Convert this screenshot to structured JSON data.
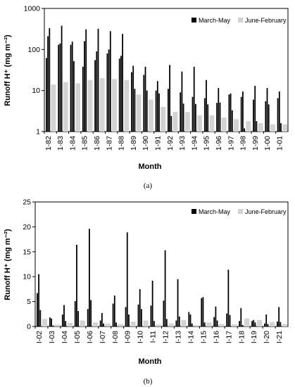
{
  "chart_data": [
    {
      "type": "bar",
      "panel_label": "(a)",
      "xlabel": "Month",
      "ylabel": "Runoff H⁺ (mg m⁻²)",
      "yscale": "log",
      "ylim": [
        1,
        1000
      ],
      "yticks": [
        "1",
        "10",
        "100",
        "1000"
      ],
      "categories": [
        "1-82",
        "1-83",
        "1-84",
        "1-85",
        "1-86",
        "1-87",
        "1-88",
        "1-89",
        "1-90",
        "1-91",
        "1-92",
        "1-93",
        "1-94",
        "1-95",
        "1-96",
        "1-97",
        "1-98",
        "1-99",
        "1-00",
        "1-01"
      ],
      "legend_position": "top-right",
      "series": [
        {
          "name": "March-May",
          "color": "#000000",
          "values": [
            [
              62,
              210,
              330
            ],
            [
              130,
              140,
              380
            ],
            [
              130,
              155,
              52
            ],
            [
              38,
              160,
              310
            ],
            [
              55,
              90,
              320
            ],
            [
              80,
              100,
              280
            ],
            [
              60,
              70,
              240
            ],
            [
              28,
              40,
              11
            ],
            [
              24,
              38,
              10
            ],
            [
              10,
              17,
              8.5
            ],
            [
              11,
              42,
              2.4
            ],
            [
              9,
              29,
              4.8
            ],
            [
              7,
              38,
              4.7
            ],
            [
              6.5,
              18,
              4.6
            ],
            [
              5,
              11.5,
              5.1
            ],
            [
              8,
              8.5,
              3.3
            ],
            [
              7,
              9.5,
              1.2
            ],
            [
              6,
              13,
              1.8
            ],
            [
              5.5,
              11.5,
              4.6
            ],
            [
              6.5,
              9.5,
              1.6
            ]
          ]
        },
        {
          "name": "June-February",
          "color": "#d3d3d3",
          "values": [
            14,
            16,
            15,
            18,
            20,
            19,
            18,
            8,
            6,
            4,
            3,
            3,
            2.5,
            2.5,
            2.2,
            2,
            1.8,
            1.6,
            1.5,
            1.5
          ]
        }
      ]
    },
    {
      "type": "bar",
      "panel_label": "(b)",
      "xlabel": "Month",
      "ylabel": "Runoff H⁺ (mg m⁻²)",
      "yscale": "linear",
      "ylim": [
        0,
        25
      ],
      "yticks": [
        "0",
        "5",
        "10",
        "15",
        "20",
        "25"
      ],
      "categories": [
        "I-02",
        "I-03",
        "I-04",
        "I-05",
        "I-06",
        "I-07",
        "I-08",
        "I-09",
        "I-10",
        "I-11",
        "I-12",
        "I-13",
        "I-14",
        "I-15",
        "I-16",
        "I-17",
        "I-18",
        "I-19",
        "I-20",
        "I-21"
      ],
      "legend_position": "top-right",
      "series": [
        {
          "name": "March-May",
          "color": "#000000",
          "values": [
            [
              6.7,
              10.5,
              3.3
            ],
            [
              1.8,
              1.6,
              0.2
            ],
            [
              2.4,
              4.3,
              1.1
            ],
            [
              5.1,
              16.4,
              3.1
            ],
            [
              3.5,
              19.6,
              5.3
            ],
            [
              1.2,
              2.7,
              0.6
            ],
            [
              4.6,
              6.2,
              0.8
            ],
            [
              3.9,
              18.9,
              2.4
            ],
            [
              4.4,
              7.5,
              3.5
            ],
            [
              4.2,
              9.2,
              1.1
            ],
            [
              5.2,
              15.3,
              1.5
            ],
            [
              1.2,
              9.5,
              2.0
            ],
            [
              2.9,
              2.4,
              0.6
            ],
            [
              5.7,
              5.9,
              0.8
            ],
            [
              1.9,
              4.0,
              1.2
            ],
            [
              2.6,
              11.4,
              2.3
            ],
            [
              1.1,
              3.7,
              0.3
            ],
            [
              1.1,
              1.3,
              0.8
            ],
            [
              0.6,
              2.4,
              0.5
            ],
            [
              1.0,
              3.9,
              0.9
            ]
          ]
        },
        {
          "name": "June-February",
          "color": "#d3d3d3",
          "values": [
            1.5,
            0.4,
            0.7,
            1.2,
            0.8,
            0.6,
            0.5,
            1.0,
            1.2,
            0.4,
            0.6,
            1.3,
            0.3,
            0.8,
            0.5,
            0.4,
            1.6,
            1.3,
            0.9,
            0.5
          ]
        }
      ]
    }
  ]
}
